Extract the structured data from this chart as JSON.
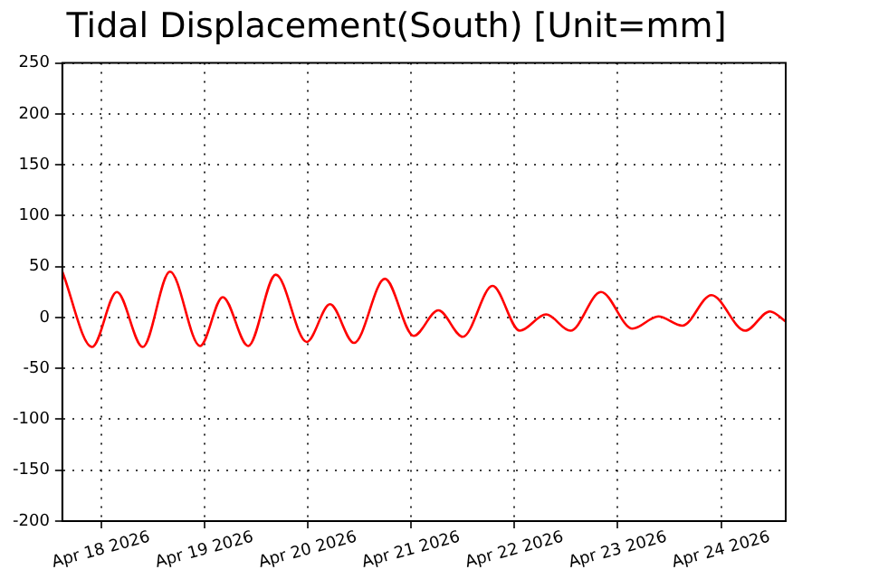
{
  "chart_data": {
    "type": "line",
    "title": "Tidal Displacement(South) [Unit=mm]",
    "x": [
      "2026-04-17T15:00",
      "2026-04-17T21:55",
      "2026-04-18T03:40",
      "2026-04-18T09:40",
      "2026-04-18T16:00",
      "2026-04-18T23:00",
      "2026-04-19T04:15",
      "2026-04-19T10:10",
      "2026-04-19T16:35",
      "2026-04-19T23:45",
      "2026-04-20T05:10",
      "2026-04-20T10:45",
      "2026-04-20T17:55",
      "2026-04-21T00:35",
      "2026-04-21T06:20",
      "2026-04-21T12:00",
      "2026-04-21T18:55",
      "2026-04-22T01:15",
      "2026-04-22T07:20",
      "2026-04-22T13:00",
      "2026-04-22T20:05",
      "2026-04-23T03:25",
      "2026-04-23T09:25",
      "2026-04-23T15:00",
      "2026-04-23T21:45",
      "2026-04-24T05:35",
      "2026-04-24T11:20",
      "2026-04-24T15:00"
    ],
    "series": [
      {
        "color": "#ff0000",
        "values": [
          45,
          -29,
          25,
          -29,
          45,
          -28,
          20,
          -28,
          42,
          -24,
          13,
          -25,
          38,
          -18,
          7,
          -19,
          31,
          -13,
          3,
          -13,
          25,
          -11,
          1,
          -8,
          22,
          -13,
          6,
          -4
        ]
      }
    ],
    "xlim": [
      "2026-04-17T15:00",
      "2026-04-24T15:00"
    ],
    "xticks": [
      {
        "value": "2026-04-18",
        "label": "Apr 18 2026"
      },
      {
        "value": "2026-04-19",
        "label": "Apr 19 2026"
      },
      {
        "value": "2026-04-20",
        "label": "Apr 20 2026"
      },
      {
        "value": "2026-04-21",
        "label": "Apr 21 2026"
      },
      {
        "value": "2026-04-22",
        "label": "Apr 22 2026"
      },
      {
        "value": "2026-04-23",
        "label": "Apr 23 2026"
      },
      {
        "value": "2026-04-24",
        "label": "Apr 24 2026"
      }
    ],
    "ylim": [
      -200,
      250
    ],
    "yticks": [
      -200,
      -150,
      -100,
      -50,
      0,
      50,
      100,
      150,
      200,
      250
    ],
    "grid": true,
    "line_style": "solid",
    "marker": "none",
    "legend": false
  }
}
